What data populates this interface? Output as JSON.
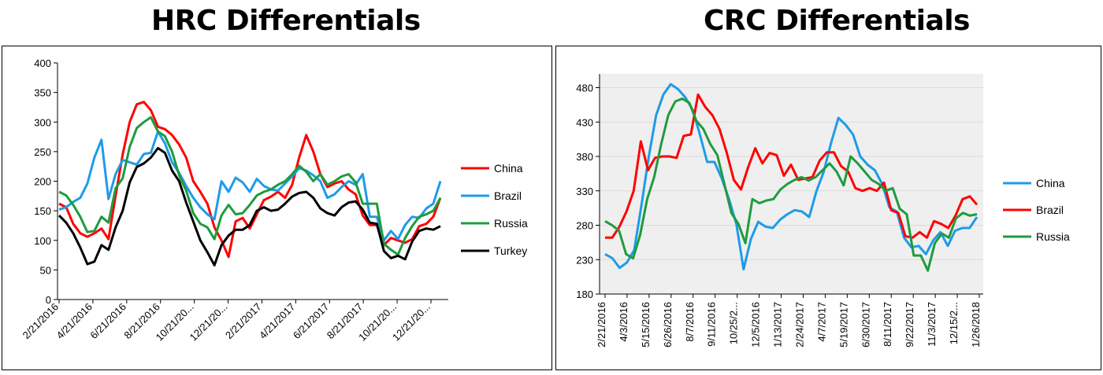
{
  "chart_data": [
    {
      "type": "line",
      "title": "HRC Differentials",
      "ylim": [
        0,
        400
      ],
      "yticks": [
        0,
        50,
        100,
        150,
        200,
        250,
        300,
        350,
        400
      ],
      "tick_labels": [
        "2/21/2016",
        "4/21/2016",
        "6/21/2016",
        "8/21/2016",
        "10/21/20...",
        "12/21/20...",
        "2/21/2017",
        "4/21/2017",
        "6/21/2017",
        "8/21/2017",
        "10/21/20...",
        "12/21/20..."
      ],
      "legend": [
        "China",
        "Brazil",
        "Russia",
        "Turkey"
      ],
      "series": [
        {
          "name": "China",
          "color": "#ff0000",
          "values": [
            162,
            156,
            128,
            112,
            106,
            112,
            120,
            102,
            175,
            245,
            300,
            330,
            334,
            320,
            292,
            288,
            278,
            262,
            240,
            200,
            182,
            162,
            122,
            100,
            72,
            132,
            138,
            120,
            144,
            168,
            174,
            182,
            172,
            194,
            240,
            278,
            250,
            212,
            190,
            196,
            200,
            186,
            178,
            142,
            126,
            126,
            92,
            104,
            100,
            96,
            102,
            124,
            128,
            140,
            172
          ]
        },
        {
          "name": "Brazil",
          "color": "#1e9be8",
          "values": [
            152,
            156,
            165,
            172,
            196,
            240,
            270,
            170,
            212,
            236,
            232,
            228,
            246,
            248,
            284,
            264,
            232,
            214,
            192,
            172,
            156,
            144,
            136,
            200,
            182,
            206,
            198,
            182,
            204,
            192,
            186,
            184,
            196,
            208,
            222,
            218,
            210,
            200,
            172,
            178,
            190,
            200,
            194,
            212,
            140,
            140,
            100,
            116,
            102,
            126,
            140,
            138,
            154,
            162,
            200
          ]
        },
        {
          "name": "Russia",
          "color": "#1f9b3e",
          "values": [
            182,
            176,
            160,
            140,
            114,
            116,
            140,
            130,
            188,
            205,
            258,
            290,
            300,
            308,
            284,
            276,
            250,
            210,
            184,
            146,
            128,
            122,
            102,
            142,
            160,
            144,
            146,
            160,
            176,
            182,
            186,
            194,
            200,
            212,
            226,
            216,
            200,
            212,
            194,
            200,
            208,
            212,
            198,
            162,
            162,
            162,
            94,
            84,
            76,
            104,
            124,
            140,
            144,
            150,
            172
          ]
        },
        {
          "name": "Turkey",
          "color": "#000000",
          "values": [
            142,
            130,
            112,
            88,
            60,
            64,
            92,
            84,
            122,
            150,
            198,
            224,
            230,
            240,
            256,
            248,
            218,
            200,
            164,
            132,
            100,
            80,
            58,
            92,
            108,
            118,
            118,
            126,
            150,
            156,
            150,
            152,
            162,
            174,
            180,
            182,
            172,
            154,
            146,
            142,
            156,
            164,
            166,
            152,
            130,
            128,
            82,
            70,
            74,
            68,
            98,
            116,
            120,
            118,
            124
          ]
        }
      ]
    },
    {
      "type": "line",
      "title": "CRC Differentials",
      "ylim": [
        180,
        500
      ],
      "yticks": [
        180,
        230,
        280,
        330,
        380,
        430,
        480
      ],
      "tick_labels": [
        "2/21/2016",
        "4/3/2016",
        "5/15/2016",
        "6/26/2016",
        "8/7/2016",
        "9/11/2016",
        "10/25/2...",
        "12/5/2016",
        "1/13/2017",
        "2/24/2017",
        "4/7/2017",
        "5/19/2017",
        "6/30/2017",
        "8/11/2017",
        "9/22/2017",
        "11/3/2017",
        "12/15/2...",
        "1/26/2018"
      ],
      "legend": [
        "China",
        "Brazil",
        "Russia"
      ],
      "series": [
        {
          "name": "China",
          "color": "#1e9be8",
          "values": [
            238,
            232,
            218,
            226,
            244,
            310,
            380,
            440,
            470,
            485,
            478,
            466,
            448,
            412,
            372,
            372,
            348,
            318,
            282,
            216,
            260,
            285,
            278,
            276,
            288,
            296,
            302,
            300,
            292,
            330,
            358,
            400,
            436,
            426,
            412,
            380,
            368,
            360,
            340,
            306,
            300,
            262,
            248,
            250,
            238,
            258,
            270,
            250,
            272,
            276,
            276,
            292
          ]
        },
        {
          "name": "Brazil",
          "color": "#ff0000",
          "values": [
            262,
            262,
            278,
            300,
            330,
            402,
            360,
            378,
            380,
            380,
            378,
            410,
            412,
            470,
            452,
            440,
            420,
            386,
            346,
            332,
            364,
            392,
            370,
            385,
            382,
            352,
            368,
            346,
            348,
            350,
            374,
            386,
            386,
            366,
            358,
            334,
            330,
            334,
            330,
            342,
            302,
            298,
            264,
            262,
            270,
            262,
            286,
            282,
            276,
            294,
            318,
            322,
            310
          ]
        },
        {
          "name": "Russia",
          "color": "#1f9b3e",
          "values": [
            286,
            280,
            272,
            238,
            232,
            266,
            318,
            350,
            398,
            440,
            460,
            464,
            458,
            432,
            420,
            398,
            382,
            340,
            298,
            282,
            254,
            318,
            312,
            316,
            318,
            332,
            340,
            346,
            350,
            345,
            350,
            360,
            370,
            358,
            338,
            380,
            370,
            358,
            346,
            340,
            330,
            334,
            304,
            296,
            236,
            236,
            214,
            254,
            268,
            262,
            290,
            298,
            294,
            296
          ]
        }
      ]
    }
  ]
}
